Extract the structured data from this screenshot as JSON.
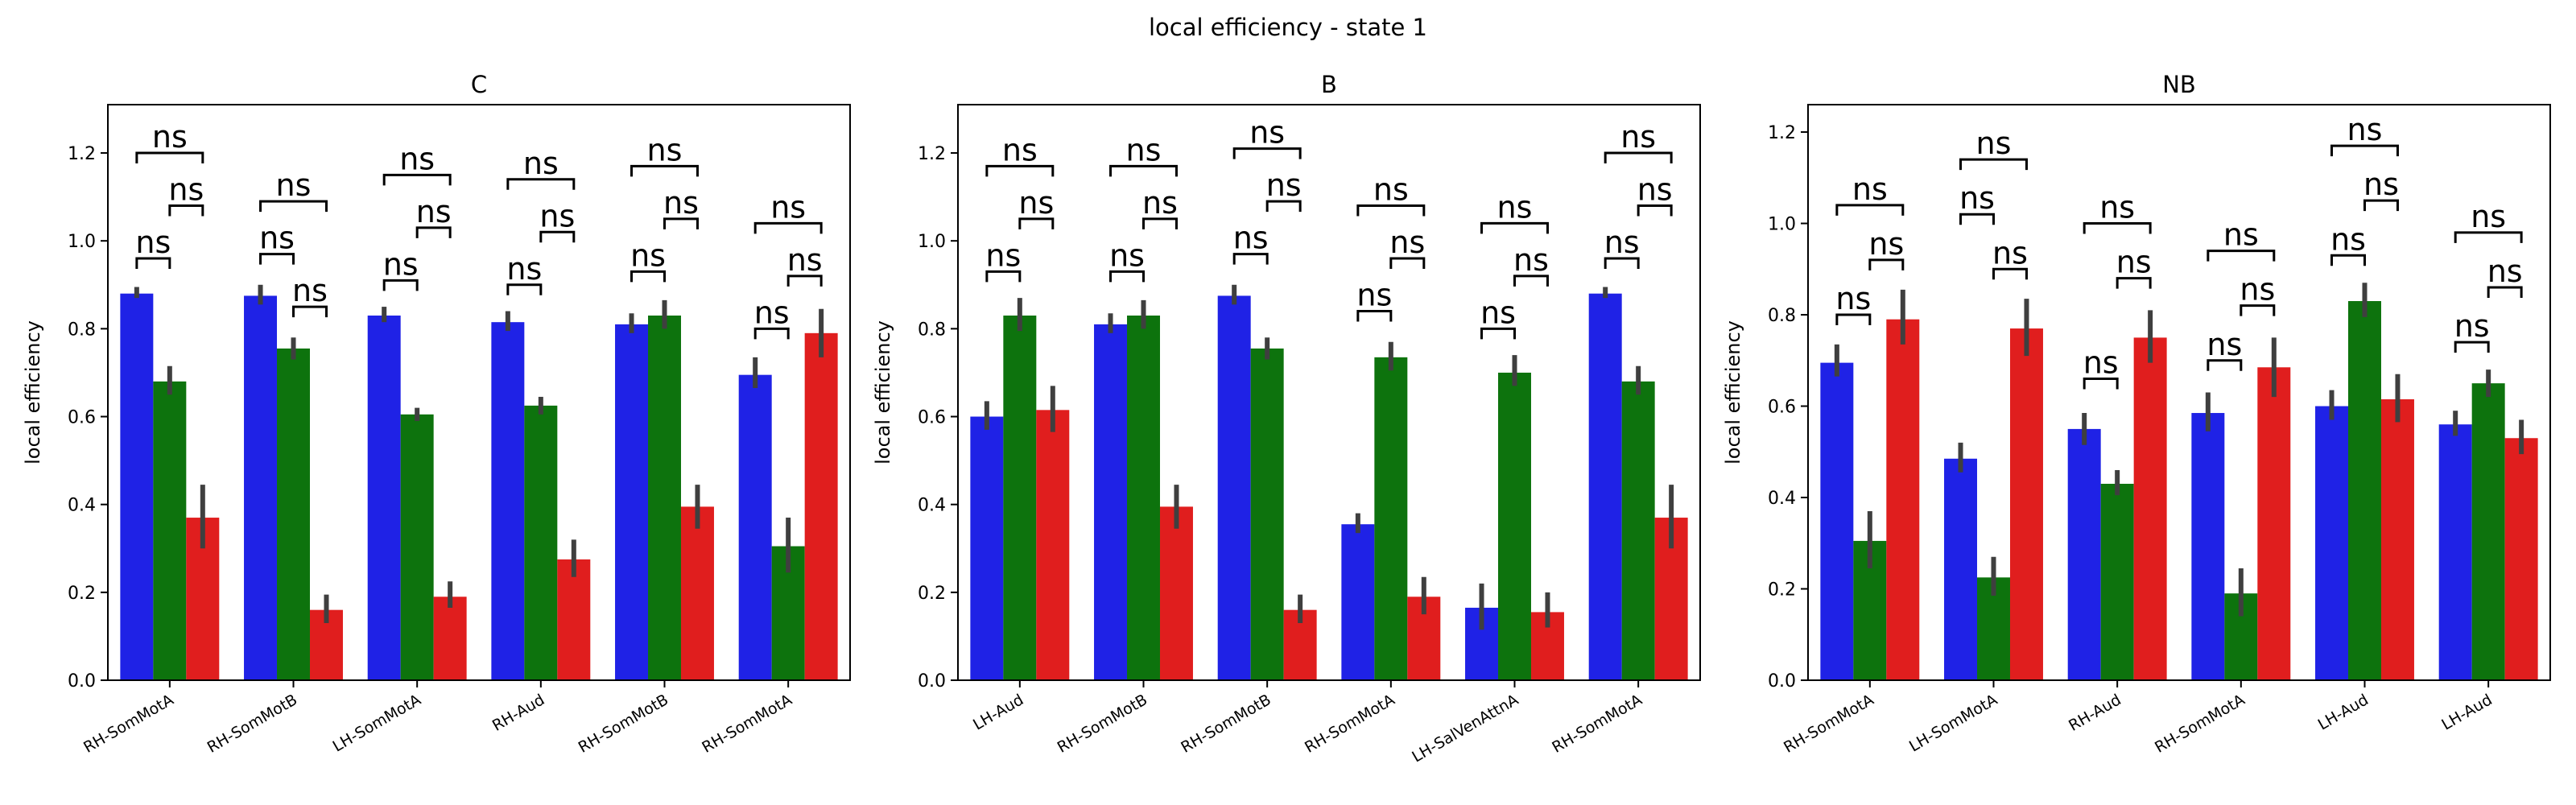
{
  "figure": {
    "title": "local efficiency - state 1"
  },
  "colors": {
    "blue": "#1f22e6",
    "green": "#0d730d",
    "red": "#e01e1e",
    "error": "#3f3f3f"
  },
  "chart_data": [
    {
      "type": "bar",
      "title": "C",
      "xlabel": "",
      "ylabel": "local efficiency",
      "ylim": [
        0,
        1.31
      ],
      "yticks": [
        "0.0",
        "0.2",
        "0.4",
        "0.6",
        "0.8",
        "1.0",
        "1.2"
      ],
      "categories": [
        "RH-SomMotA",
        "RH-SomMotB",
        "LH-SomMotA",
        "RH-Aud",
        "RH-SomMotB",
        "RH-SomMotA"
      ],
      "series": [
        {
          "values": [
            0.88,
            0.875,
            0.83,
            0.815,
            0.81,
            0.695
          ],
          "err": [
            [
              0.87,
              0.895
            ],
            [
              0.855,
              0.9
            ],
            [
              0.815,
              0.85
            ],
            [
              0.795,
              0.84
            ],
            [
              0.79,
              0.835
            ],
            [
              0.665,
              0.735
            ]
          ]
        },
        {
          "values": [
            0.68,
            0.755,
            0.605,
            0.625,
            0.83,
            0.305
          ],
          "err": [
            [
              0.65,
              0.715
            ],
            [
              0.73,
              0.78
            ],
            [
              0.59,
              0.62
            ],
            [
              0.605,
              0.645
            ],
            [
              0.8,
              0.865
            ],
            [
              0.245,
              0.37
            ]
          ]
        },
        {
          "values": [
            0.37,
            0.16,
            0.19,
            0.275,
            0.395,
            0.79
          ],
          "err": [
            [
              0.3,
              0.445
            ],
            [
              0.13,
              0.195
            ],
            [
              0.165,
              0.225
            ],
            [
              0.235,
              0.32
            ],
            [
              0.345,
              0.445
            ],
            [
              0.735,
              0.845
            ]
          ]
        }
      ],
      "annotations": [
        {
          "cat": 0,
          "bars": [
            0,
            1
          ],
          "y": 0.96,
          "label": "ns"
        },
        {
          "cat": 0,
          "bars": [
            1,
            2
          ],
          "y": 1.08,
          "label": "ns"
        },
        {
          "cat": 0,
          "bars": [
            0,
            2
          ],
          "y": 1.2,
          "label": "ns"
        },
        {
          "cat": 1,
          "bars": [
            0,
            1
          ],
          "y": 0.97,
          "label": "ns"
        },
        {
          "cat": 1,
          "bars": [
            1,
            2
          ],
          "y": 0.85,
          "label": "ns"
        },
        {
          "cat": 1,
          "bars": [
            0,
            2
          ],
          "y": 1.09,
          "label": "ns"
        },
        {
          "cat": 2,
          "bars": [
            0,
            1
          ],
          "y": 0.91,
          "label": "ns"
        },
        {
          "cat": 2,
          "bars": [
            1,
            2
          ],
          "y": 1.03,
          "label": "ns"
        },
        {
          "cat": 2,
          "bars": [
            0,
            2
          ],
          "y": 1.15,
          "label": "ns"
        },
        {
          "cat": 3,
          "bars": [
            0,
            1
          ],
          "y": 0.9,
          "label": "ns"
        },
        {
          "cat": 3,
          "bars": [
            1,
            2
          ],
          "y": 1.02,
          "label": "ns"
        },
        {
          "cat": 3,
          "bars": [
            0,
            2
          ],
          "y": 1.14,
          "label": "ns"
        },
        {
          "cat": 4,
          "bars": [
            0,
            1
          ],
          "y": 0.93,
          "label": "ns"
        },
        {
          "cat": 4,
          "bars": [
            1,
            2
          ],
          "y": 1.05,
          "label": "ns"
        },
        {
          "cat": 4,
          "bars": [
            0,
            2
          ],
          "y": 1.17,
          "label": "ns"
        },
        {
          "cat": 5,
          "bars": [
            0,
            1
          ],
          "y": 0.8,
          "label": "ns"
        },
        {
          "cat": 5,
          "bars": [
            1,
            2
          ],
          "y": 0.92,
          "label": "ns"
        },
        {
          "cat": 5,
          "bars": [
            0,
            2
          ],
          "y": 1.04,
          "label": "ns"
        }
      ]
    },
    {
      "type": "bar",
      "title": "B",
      "xlabel": "",
      "ylabel": "local efficiency",
      "ylim": [
        0,
        1.31
      ],
      "yticks": [
        "0.0",
        "0.2",
        "0.4",
        "0.6",
        "0.8",
        "1.0",
        "1.2"
      ],
      "categories": [
        "LH-Aud",
        "RH-SomMotB",
        "RH-SomMotB",
        "RH-SomMotA",
        "LH-SalVenAttnA",
        "RH-SomMotA"
      ],
      "series": [
        {
          "values": [
            0.6,
            0.81,
            0.875,
            0.355,
            0.165,
            0.88
          ],
          "err": [
            [
              0.57,
              0.635
            ],
            [
              0.79,
              0.835
            ],
            [
              0.855,
              0.9
            ],
            [
              0.335,
              0.38
            ],
            [
              0.115,
              0.22
            ],
            [
              0.87,
              0.895
            ]
          ]
        },
        {
          "values": [
            0.83,
            0.83,
            0.755,
            0.735,
            0.7,
            0.68
          ],
          "err": [
            [
              0.795,
              0.87
            ],
            [
              0.8,
              0.865
            ],
            [
              0.73,
              0.78
            ],
            [
              0.705,
              0.77
            ],
            [
              0.67,
              0.74
            ],
            [
              0.65,
              0.715
            ]
          ]
        },
        {
          "values": [
            0.615,
            0.395,
            0.16,
            0.19,
            0.155,
            0.37
          ],
          "err": [
            [
              0.565,
              0.67
            ],
            [
              0.345,
              0.445
            ],
            [
              0.13,
              0.195
            ],
            [
              0.15,
              0.235
            ],
            [
              0.12,
              0.2
            ],
            [
              0.3,
              0.445
            ]
          ]
        }
      ],
      "annotations": [
        {
          "cat": 0,
          "bars": [
            0,
            1
          ],
          "y": 0.93,
          "label": "ns"
        },
        {
          "cat": 0,
          "bars": [
            1,
            2
          ],
          "y": 1.05,
          "label": "ns"
        },
        {
          "cat": 0,
          "bars": [
            0,
            2
          ],
          "y": 1.17,
          "label": "ns"
        },
        {
          "cat": 1,
          "bars": [
            0,
            1
          ],
          "y": 0.93,
          "label": "ns"
        },
        {
          "cat": 1,
          "bars": [
            1,
            2
          ],
          "y": 1.05,
          "label": "ns"
        },
        {
          "cat": 1,
          "bars": [
            0,
            2
          ],
          "y": 1.17,
          "label": "ns"
        },
        {
          "cat": 2,
          "bars": [
            0,
            1
          ],
          "y": 0.97,
          "label": "ns"
        },
        {
          "cat": 2,
          "bars": [
            1,
            2
          ],
          "y": 1.09,
          "label": "ns"
        },
        {
          "cat": 2,
          "bars": [
            0,
            2
          ],
          "y": 1.21,
          "label": "ns"
        },
        {
          "cat": 3,
          "bars": [
            0,
            1
          ],
          "y": 0.84,
          "label": "ns"
        },
        {
          "cat": 3,
          "bars": [
            1,
            2
          ],
          "y": 0.96,
          "label": "ns"
        },
        {
          "cat": 3,
          "bars": [
            0,
            2
          ],
          "y": 1.08,
          "label": "ns"
        },
        {
          "cat": 4,
          "bars": [
            0,
            1
          ],
          "y": 0.8,
          "label": "ns"
        },
        {
          "cat": 4,
          "bars": [
            1,
            2
          ],
          "y": 0.92,
          "label": "ns"
        },
        {
          "cat": 4,
          "bars": [
            0,
            2
          ],
          "y": 1.04,
          "label": "ns"
        },
        {
          "cat": 5,
          "bars": [
            0,
            1
          ],
          "y": 0.96,
          "label": "ns"
        },
        {
          "cat": 5,
          "bars": [
            1,
            2
          ],
          "y": 1.08,
          "label": "ns"
        },
        {
          "cat": 5,
          "bars": [
            0,
            2
          ],
          "y": 1.2,
          "label": "ns"
        }
      ]
    },
    {
      "type": "bar",
      "title": "NB",
      "xlabel": "",
      "ylabel": "local efficiency",
      "ylim": [
        0,
        1.26
      ],
      "yticks": [
        "0.0",
        "0.2",
        "0.4",
        "0.6",
        "0.8",
        "1.0",
        "1.2"
      ],
      "categories": [
        "RH-SomMotA",
        "LH-SomMotA",
        "RH-Aud",
        "RH-SomMotA",
        "LH-Aud",
        "LH-Aud"
      ],
      "series": [
        {
          "values": [
            0.695,
            0.485,
            0.55,
            0.585,
            0.6,
            0.56
          ],
          "err": [
            [
              0.665,
              0.735
            ],
            [
              0.455,
              0.52
            ],
            [
              0.515,
              0.585
            ],
            [
              0.545,
              0.63
            ],
            [
              0.57,
              0.635
            ],
            [
              0.535,
              0.59
            ]
          ]
        },
        {
          "values": [
            0.305,
            0.225,
            0.43,
            0.19,
            0.83,
            0.65
          ],
          "err": [
            [
              0.245,
              0.37
            ],
            [
              0.185,
              0.27
            ],
            [
              0.405,
              0.46
            ],
            [
              0.14,
              0.245
            ],
            [
              0.795,
              0.87
            ],
            [
              0.62,
              0.68
            ]
          ]
        },
        {
          "values": [
            0.79,
            0.77,
            0.75,
            0.685,
            0.615,
            0.53
          ],
          "err": [
            [
              0.735,
              0.855
            ],
            [
              0.71,
              0.835
            ],
            [
              0.695,
              0.81
            ],
            [
              0.62,
              0.75
            ],
            [
              0.565,
              0.67
            ],
            [
              0.495,
              0.57
            ]
          ]
        }
      ],
      "annotations": [
        {
          "cat": 0,
          "bars": [
            0,
            1
          ],
          "y": 0.8,
          "label": "ns"
        },
        {
          "cat": 0,
          "bars": [
            1,
            2
          ],
          "y": 0.92,
          "label": "ns"
        },
        {
          "cat": 0,
          "bars": [
            0,
            2
          ],
          "y": 1.04,
          "label": "ns"
        },
        {
          "cat": 1,
          "bars": [
            0,
            1
          ],
          "y": 1.02,
          "label": "ns"
        },
        {
          "cat": 1,
          "bars": [
            1,
            2
          ],
          "y": 0.9,
          "label": "ns"
        },
        {
          "cat": 1,
          "bars": [
            0,
            2
          ],
          "y": 1.14,
          "label": "ns"
        },
        {
          "cat": 2,
          "bars": [
            0,
            1
          ],
          "y": 0.66,
          "label": "ns"
        },
        {
          "cat": 2,
          "bars": [
            1,
            2
          ],
          "y": 0.88,
          "label": "ns"
        },
        {
          "cat": 2,
          "bars": [
            0,
            2
          ],
          "y": 1.0,
          "label": "ns"
        },
        {
          "cat": 3,
          "bars": [
            0,
            1
          ],
          "y": 0.7,
          "label": "ns"
        },
        {
          "cat": 3,
          "bars": [
            1,
            2
          ],
          "y": 0.82,
          "label": "ns"
        },
        {
          "cat": 3,
          "bars": [
            0,
            2
          ],
          "y": 0.94,
          "label": "ns"
        },
        {
          "cat": 4,
          "bars": [
            0,
            1
          ],
          "y": 0.93,
          "label": "ns"
        },
        {
          "cat": 4,
          "bars": [
            1,
            2
          ],
          "y": 1.05,
          "label": "ns"
        },
        {
          "cat": 4,
          "bars": [
            0,
            2
          ],
          "y": 1.17,
          "label": "ns"
        },
        {
          "cat": 5,
          "bars": [
            0,
            1
          ],
          "y": 0.74,
          "label": "ns"
        },
        {
          "cat": 5,
          "bars": [
            1,
            2
          ],
          "y": 0.86,
          "label": "ns"
        },
        {
          "cat": 5,
          "bars": [
            0,
            2
          ],
          "y": 0.98,
          "label": "ns"
        }
      ]
    }
  ]
}
